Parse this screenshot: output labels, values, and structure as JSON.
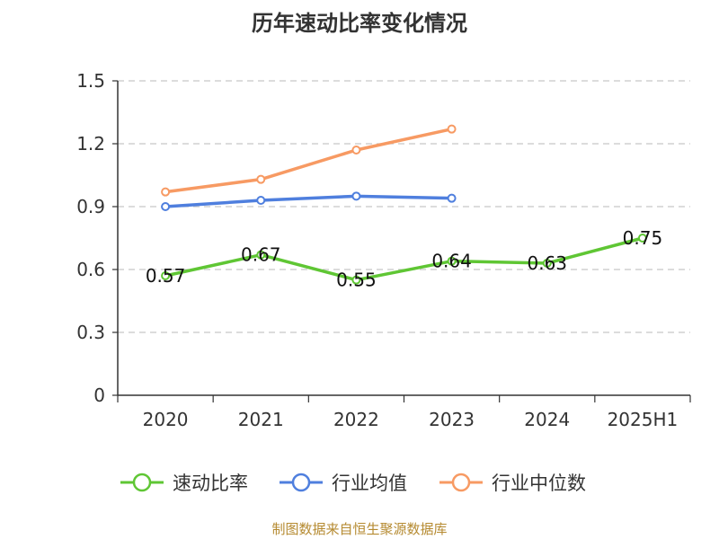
{
  "title": "历年速动比率变化情况",
  "footer": "制图数据来自恒生聚源数据库",
  "chart_data": {
    "type": "line",
    "title": "历年速动比率变化情况",
    "categories": [
      "2020",
      "2021",
      "2022",
      "2023",
      "2024",
      "2025H1"
    ],
    "ylim": [
      0,
      1.5
    ],
    "yticks": [
      "0",
      "0.3",
      "0.6",
      "0.9",
      "1.2",
      "1.5"
    ],
    "ytick_values": [
      0,
      0.3,
      0.6,
      0.9,
      1.2,
      1.5
    ],
    "grid": true,
    "legend_position": "bottom",
    "series": [
      {
        "name": "速动比率",
        "color": "#5fc634",
        "values": [
          0.57,
          0.67,
          0.55,
          0.64,
          0.63,
          0.75
        ],
        "labels": [
          "0.57",
          "0.67",
          "0.55",
          "0.64",
          "0.63",
          "0.75"
        ],
        "show_labels": true
      },
      {
        "name": "行业均值",
        "color": "#4f7fde",
        "values": [
          0.9,
          0.93,
          0.95,
          0.94,
          null,
          null
        ],
        "show_labels": false
      },
      {
        "name": "行业中位数",
        "color": "#f79a63",
        "values": [
          0.97,
          1.03,
          1.17,
          1.27,
          null,
          null
        ],
        "show_labels": false
      }
    ]
  }
}
